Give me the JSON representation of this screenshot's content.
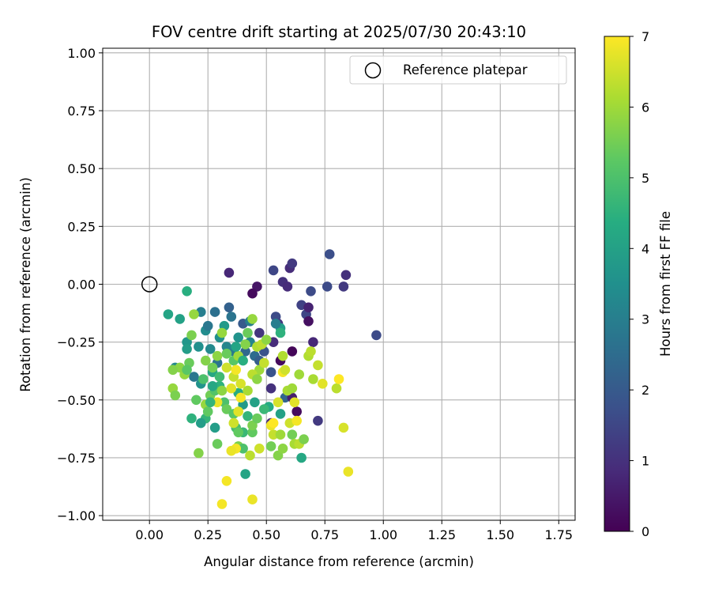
{
  "chart_data": {
    "type": "scatter",
    "title": "FOV centre drift starting at 2025/07/30 20:43:10",
    "xlabel": "Angular distance from reference (arcmin)",
    "ylabel": "Rotation from reference (arcmin)",
    "xlim": [
      -0.2,
      1.82
    ],
    "ylim": [
      -1.02,
      1.02
    ],
    "xticks": [
      0.0,
      0.25,
      0.5,
      0.75,
      1.0,
      1.25,
      1.5,
      1.75
    ],
    "xtick_labels": [
      "0.00",
      "0.25",
      "0.50",
      "0.75",
      "1.00",
      "1.25",
      "1.50",
      "1.75"
    ],
    "yticks": [
      1.0,
      0.75,
      0.5,
      0.25,
      0.0,
      -0.25,
      -0.5,
      -0.75,
      -1.0
    ],
    "ytick_labels": [
      "1.00",
      "0.75",
      "0.50",
      "0.25",
      "0.00",
      "−0.25",
      "−0.50",
      "−0.75",
      "−1.00"
    ],
    "grid": true,
    "legend": {
      "position": "top-right",
      "entries": [
        "Reference platepar"
      ]
    },
    "reference_point": {
      "x": 0.0,
      "y": 0.0,
      "marker": "hollow-circle"
    },
    "colorbar": {
      "label": "Hours from first FF file",
      "range": [
        0,
        7
      ],
      "ticks": [
        0,
        1,
        2,
        3,
        4,
        5,
        6,
        7
      ],
      "tick_labels": [
        "0",
        "1",
        "2",
        "3",
        "4",
        "5",
        "6",
        "7"
      ],
      "colormap": "viridis"
    },
    "series": [
      {
        "values": [
          [
            0.34,
            0.05,
            0.8
          ],
          [
            0.46,
            -0.01,
            0.4
          ],
          [
            0.44,
            -0.04,
            0.2
          ],
          [
            0.53,
            0.06,
            1.5
          ],
          [
            0.57,
            0.01,
            1.0
          ],
          [
            0.59,
            -0.01,
            0.9
          ],
          [
            0.6,
            0.07,
            0.9
          ],
          [
            0.61,
            0.09,
            1.2
          ],
          [
            0.65,
            -0.09,
            1.4
          ],
          [
            0.67,
            -0.13,
            1.5
          ],
          [
            0.68,
            -0.1,
            0.7
          ],
          [
            0.68,
            -0.16,
            0.3
          ],
          [
            0.69,
            -0.03,
            1.6
          ],
          [
            0.76,
            -0.01,
            1.6
          ],
          [
            0.77,
            0.13,
            1.7
          ],
          [
            0.83,
            -0.01,
            1.2
          ],
          [
            0.84,
            0.04,
            1.0
          ],
          [
            0.97,
            -0.22,
            1.6
          ],
          [
            0.7,
            -0.25,
            0.8
          ],
          [
            0.61,
            -0.29,
            0.1
          ],
          [
            0.56,
            -0.33,
            0.2
          ],
          [
            0.54,
            -0.14,
            1.6
          ],
          [
            0.55,
            -0.17,
            1.1
          ],
          [
            0.53,
            -0.25,
            0.9
          ],
          [
            0.47,
            -0.21,
            1.1
          ],
          [
            0.52,
            -0.38,
            1.8
          ],
          [
            0.52,
            -0.45,
            1.0
          ],
          [
            0.58,
            -0.49,
            2.3
          ],
          [
            0.61,
            -0.49,
            0.6
          ],
          [
            0.63,
            -0.55,
            0.2
          ],
          [
            0.72,
            -0.59,
            1.2
          ],
          [
            0.52,
            -0.6,
            0.9
          ],
          [
            0.34,
            -0.1,
            2.2
          ],
          [
            0.35,
            -0.14,
            2.7
          ],
          [
            0.4,
            -0.17,
            2.0
          ],
          [
            0.43,
            -0.16,
            3.0
          ],
          [
            0.41,
            -0.29,
            2.4
          ],
          [
            0.36,
            -0.29,
            2.9
          ],
          [
            0.33,
            -0.27,
            3.2
          ],
          [
            0.29,
            -0.34,
            2.7
          ],
          [
            0.26,
            -0.28,
            3.3
          ],
          [
            0.24,
            -0.2,
            3.4
          ],
          [
            0.22,
            -0.12,
            3.0
          ],
          [
            0.25,
            -0.18,
            2.8
          ],
          [
            0.28,
            -0.12,
            2.6
          ],
          [
            0.3,
            -0.23,
            3.5
          ],
          [
            0.32,
            -0.18,
            3.8
          ],
          [
            0.38,
            -0.23,
            3.6
          ],
          [
            0.43,
            -0.25,
            3.2
          ],
          [
            0.45,
            -0.31,
            2.5
          ],
          [
            0.47,
            -0.33,
            2.1
          ],
          [
            0.49,
            -0.29,
            1.8
          ],
          [
            0.56,
            -0.19,
            3.9
          ],
          [
            0.16,
            -0.03,
            4.4
          ],
          [
            0.08,
            -0.13,
            4.1
          ],
          [
            0.13,
            -0.15,
            4.0
          ],
          [
            0.16,
            -0.25,
            3.7
          ],
          [
            0.16,
            -0.28,
            3.9
          ],
          [
            0.21,
            -0.27,
            3.5
          ],
          [
            0.19,
            -0.4,
            2.8
          ],
          [
            0.11,
            -0.36,
            3.3
          ],
          [
            0.22,
            -0.43,
            3.6
          ],
          [
            0.27,
            -0.38,
            4.2
          ],
          [
            0.3,
            -0.44,
            4.5
          ],
          [
            0.38,
            -0.47,
            4.3
          ],
          [
            0.4,
            -0.52,
            3.8
          ],
          [
            0.42,
            -0.57,
            4.6
          ],
          [
            0.45,
            -0.51,
            4.0
          ],
          [
            0.51,
            -0.53,
            4.3
          ],
          [
            0.56,
            -0.56,
            4.0
          ],
          [
            0.65,
            -0.75,
            4.2
          ],
          [
            0.41,
            -0.82,
            4.1
          ],
          [
            0.4,
            -0.64,
            4.7
          ],
          [
            0.37,
            -0.62,
            4.9
          ],
          [
            0.28,
            -0.62,
            3.9
          ],
          [
            0.24,
            -0.58,
            4.6
          ],
          [
            0.22,
            -0.6,
            3.9
          ],
          [
            0.18,
            -0.58,
            4.5
          ],
          [
            0.32,
            -0.51,
            5.0
          ],
          [
            0.33,
            -0.54,
            5.4
          ],
          [
            0.36,
            -0.56,
            5.2
          ],
          [
            0.38,
            -0.64,
            5.3
          ],
          [
            0.38,
            -0.7,
            5.6
          ],
          [
            0.4,
            -0.71,
            5.0
          ],
          [
            0.44,
            -0.64,
            5.3
          ],
          [
            0.44,
            -0.61,
            5.6
          ],
          [
            0.46,
            -0.58,
            5.4
          ],
          [
            0.52,
            -0.7,
            5.5
          ],
          [
            0.55,
            -0.74,
            5.7
          ],
          [
            0.57,
            -0.71,
            5.8
          ],
          [
            0.61,
            -0.65,
            5.5
          ],
          [
            0.62,
            -0.69,
            6.1
          ],
          [
            0.64,
            -0.69,
            6.3
          ],
          [
            0.66,
            -0.67,
            5.6
          ],
          [
            0.53,
            -0.65,
            6.4
          ],
          [
            0.56,
            -0.65,
            6.0
          ],
          [
            0.6,
            -0.6,
            6.5
          ],
          [
            0.2,
            -0.5,
            5.3
          ],
          [
            0.21,
            -0.73,
            5.7
          ],
          [
            0.29,
            -0.69,
            5.4
          ],
          [
            0.24,
            -0.52,
            5.9
          ],
          [
            0.26,
            -0.48,
            5.5
          ],
          [
            0.28,
            -0.46,
            5.1
          ],
          [
            0.31,
            -0.46,
            5.8
          ],
          [
            0.15,
            -0.39,
            5.9
          ],
          [
            0.17,
            -0.34,
            5.4
          ],
          [
            0.13,
            -0.36,
            5.8
          ],
          [
            0.1,
            -0.37,
            5.7
          ],
          [
            0.1,
            -0.45,
            5.9
          ],
          [
            0.11,
            -0.48,
            5.6
          ],
          [
            0.16,
            -0.37,
            5.2
          ],
          [
            0.18,
            -0.22,
            5.6
          ],
          [
            0.19,
            -0.13,
            5.9
          ],
          [
            0.24,
            -0.33,
            5.7
          ],
          [
            0.27,
            -0.36,
            5.5
          ],
          [
            0.29,
            -0.31,
            5.8
          ],
          [
            0.31,
            -0.21,
            5.9
          ],
          [
            0.33,
            -0.3,
            5.4
          ],
          [
            0.36,
            -0.33,
            5.2
          ],
          [
            0.38,
            -0.31,
            6.0
          ],
          [
            0.41,
            -0.26,
            5.7
          ],
          [
            0.42,
            -0.21,
            5.4
          ],
          [
            0.44,
            -0.15,
            5.9
          ],
          [
            0.46,
            -0.27,
            6.2
          ],
          [
            0.48,
            -0.26,
            6.3
          ],
          [
            0.5,
            -0.24,
            5.8
          ],
          [
            0.47,
            -0.37,
            6.0
          ],
          [
            0.49,
            -0.34,
            6.4
          ],
          [
            0.44,
            -0.39,
            6.3
          ],
          [
            0.46,
            -0.41,
            5.8
          ],
          [
            0.42,
            -0.46,
            6.1
          ],
          [
            0.39,
            -0.43,
            6.6
          ],
          [
            0.36,
            -0.4,
            6.4
          ],
          [
            0.37,
            -0.37,
            6.9
          ],
          [
            0.35,
            -0.45,
            6.7
          ],
          [
            0.33,
            -0.36,
            6.5
          ],
          [
            0.29,
            -0.51,
            6.8
          ],
          [
            0.39,
            -0.49,
            6.9
          ],
          [
            0.36,
            -0.6,
            6.5
          ],
          [
            0.38,
            -0.55,
            6.7
          ],
          [
            0.37,
            -0.71,
            6.9
          ],
          [
            0.43,
            -0.74,
            6.3
          ],
          [
            0.47,
            -0.71,
            6.5
          ],
          [
            0.52,
            -0.61,
            6.8
          ],
          [
            0.53,
            -0.6,
            7.0
          ],
          [
            0.55,
            -0.51,
            6.6
          ],
          [
            0.57,
            -0.38,
            6.9
          ],
          [
            0.57,
            -0.31,
            6.2
          ],
          [
            0.58,
            -0.37,
            6.5
          ],
          [
            0.59,
            -0.46,
            6.1
          ],
          [
            0.61,
            -0.45,
            6.0
          ],
          [
            0.62,
            -0.51,
            6.7
          ],
          [
            0.63,
            -0.59,
            6.9
          ],
          [
            0.64,
            -0.39,
            6.0
          ],
          [
            0.68,
            -0.31,
            6.2
          ],
          [
            0.69,
            -0.29,
            6.3
          ],
          [
            0.7,
            -0.41,
            6.1
          ],
          [
            0.72,
            -0.35,
            6.4
          ],
          [
            0.74,
            -0.43,
            6.7
          ],
          [
            0.8,
            -0.45,
            6.3
          ],
          [
            0.81,
            -0.41,
            7.0
          ],
          [
            0.83,
            -0.62,
            6.6
          ],
          [
            0.85,
            -0.81,
            6.8
          ],
          [
            0.33,
            -0.85,
            6.9
          ],
          [
            0.31,
            -0.95,
            6.9
          ],
          [
            0.44,
            -0.93,
            6.8
          ],
          [
            0.35,
            -0.72,
            6.8
          ],
          [
            0.49,
            -0.54,
            4.7
          ],
          [
            0.56,
            -0.21,
            4.5
          ],
          [
            0.54,
            -0.17,
            3.0
          ],
          [
            0.37,
            -0.27,
            4.1
          ],
          [
            0.4,
            -0.33,
            4.4
          ],
          [
            0.3,
            -0.4,
            4.8
          ],
          [
            0.27,
            -0.44,
            4.2
          ],
          [
            0.23,
            -0.41,
            5.0
          ],
          [
            0.25,
            -0.55,
            5.3
          ],
          [
            0.26,
            -0.51,
            4.6
          ]
        ]
      }
    ]
  }
}
